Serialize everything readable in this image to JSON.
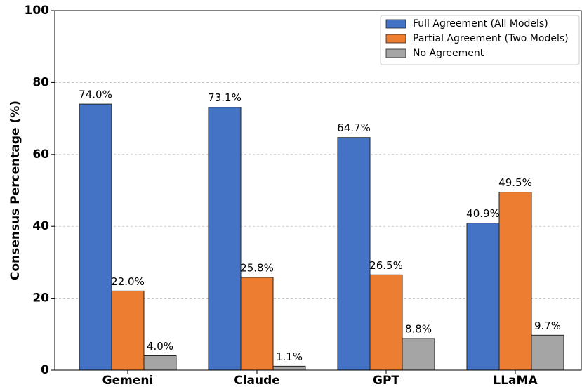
{
  "chart_data": {
    "type": "bar",
    "ylabel": "Consensus Percentage (%)",
    "categories": [
      "Gemeni",
      "Claude",
      "GPT",
      "LLaMA"
    ],
    "series": [
      {
        "name": "Full Agreement (All Models)",
        "color": "#4472c4",
        "values": [
          74.0,
          73.1,
          64.7,
          40.9
        ],
        "value_labels": [
          "74.0%",
          "73.1%",
          "64.7%",
          "40.9%"
        ]
      },
      {
        "name": "Partial Agreement (Two Models)",
        "color": "#ed7d31",
        "values": [
          22.0,
          25.8,
          26.5,
          49.5
        ],
        "value_labels": [
          "22.0%",
          "25.8%",
          "26.5%",
          "49.5%"
        ]
      },
      {
        "name": "No Agreement",
        "color": "#a5a5a5",
        "values": [
          4.0,
          1.1,
          8.8,
          9.7
        ],
        "value_labels": [
          "4.0%",
          "1.1%",
          "8.8%",
          "9.7%"
        ]
      }
    ],
    "ylim": [
      0,
      100
    ],
    "yticks": [
      0,
      20,
      40,
      60,
      80,
      100
    ],
    "grid": true,
    "legend": "upper right"
  }
}
